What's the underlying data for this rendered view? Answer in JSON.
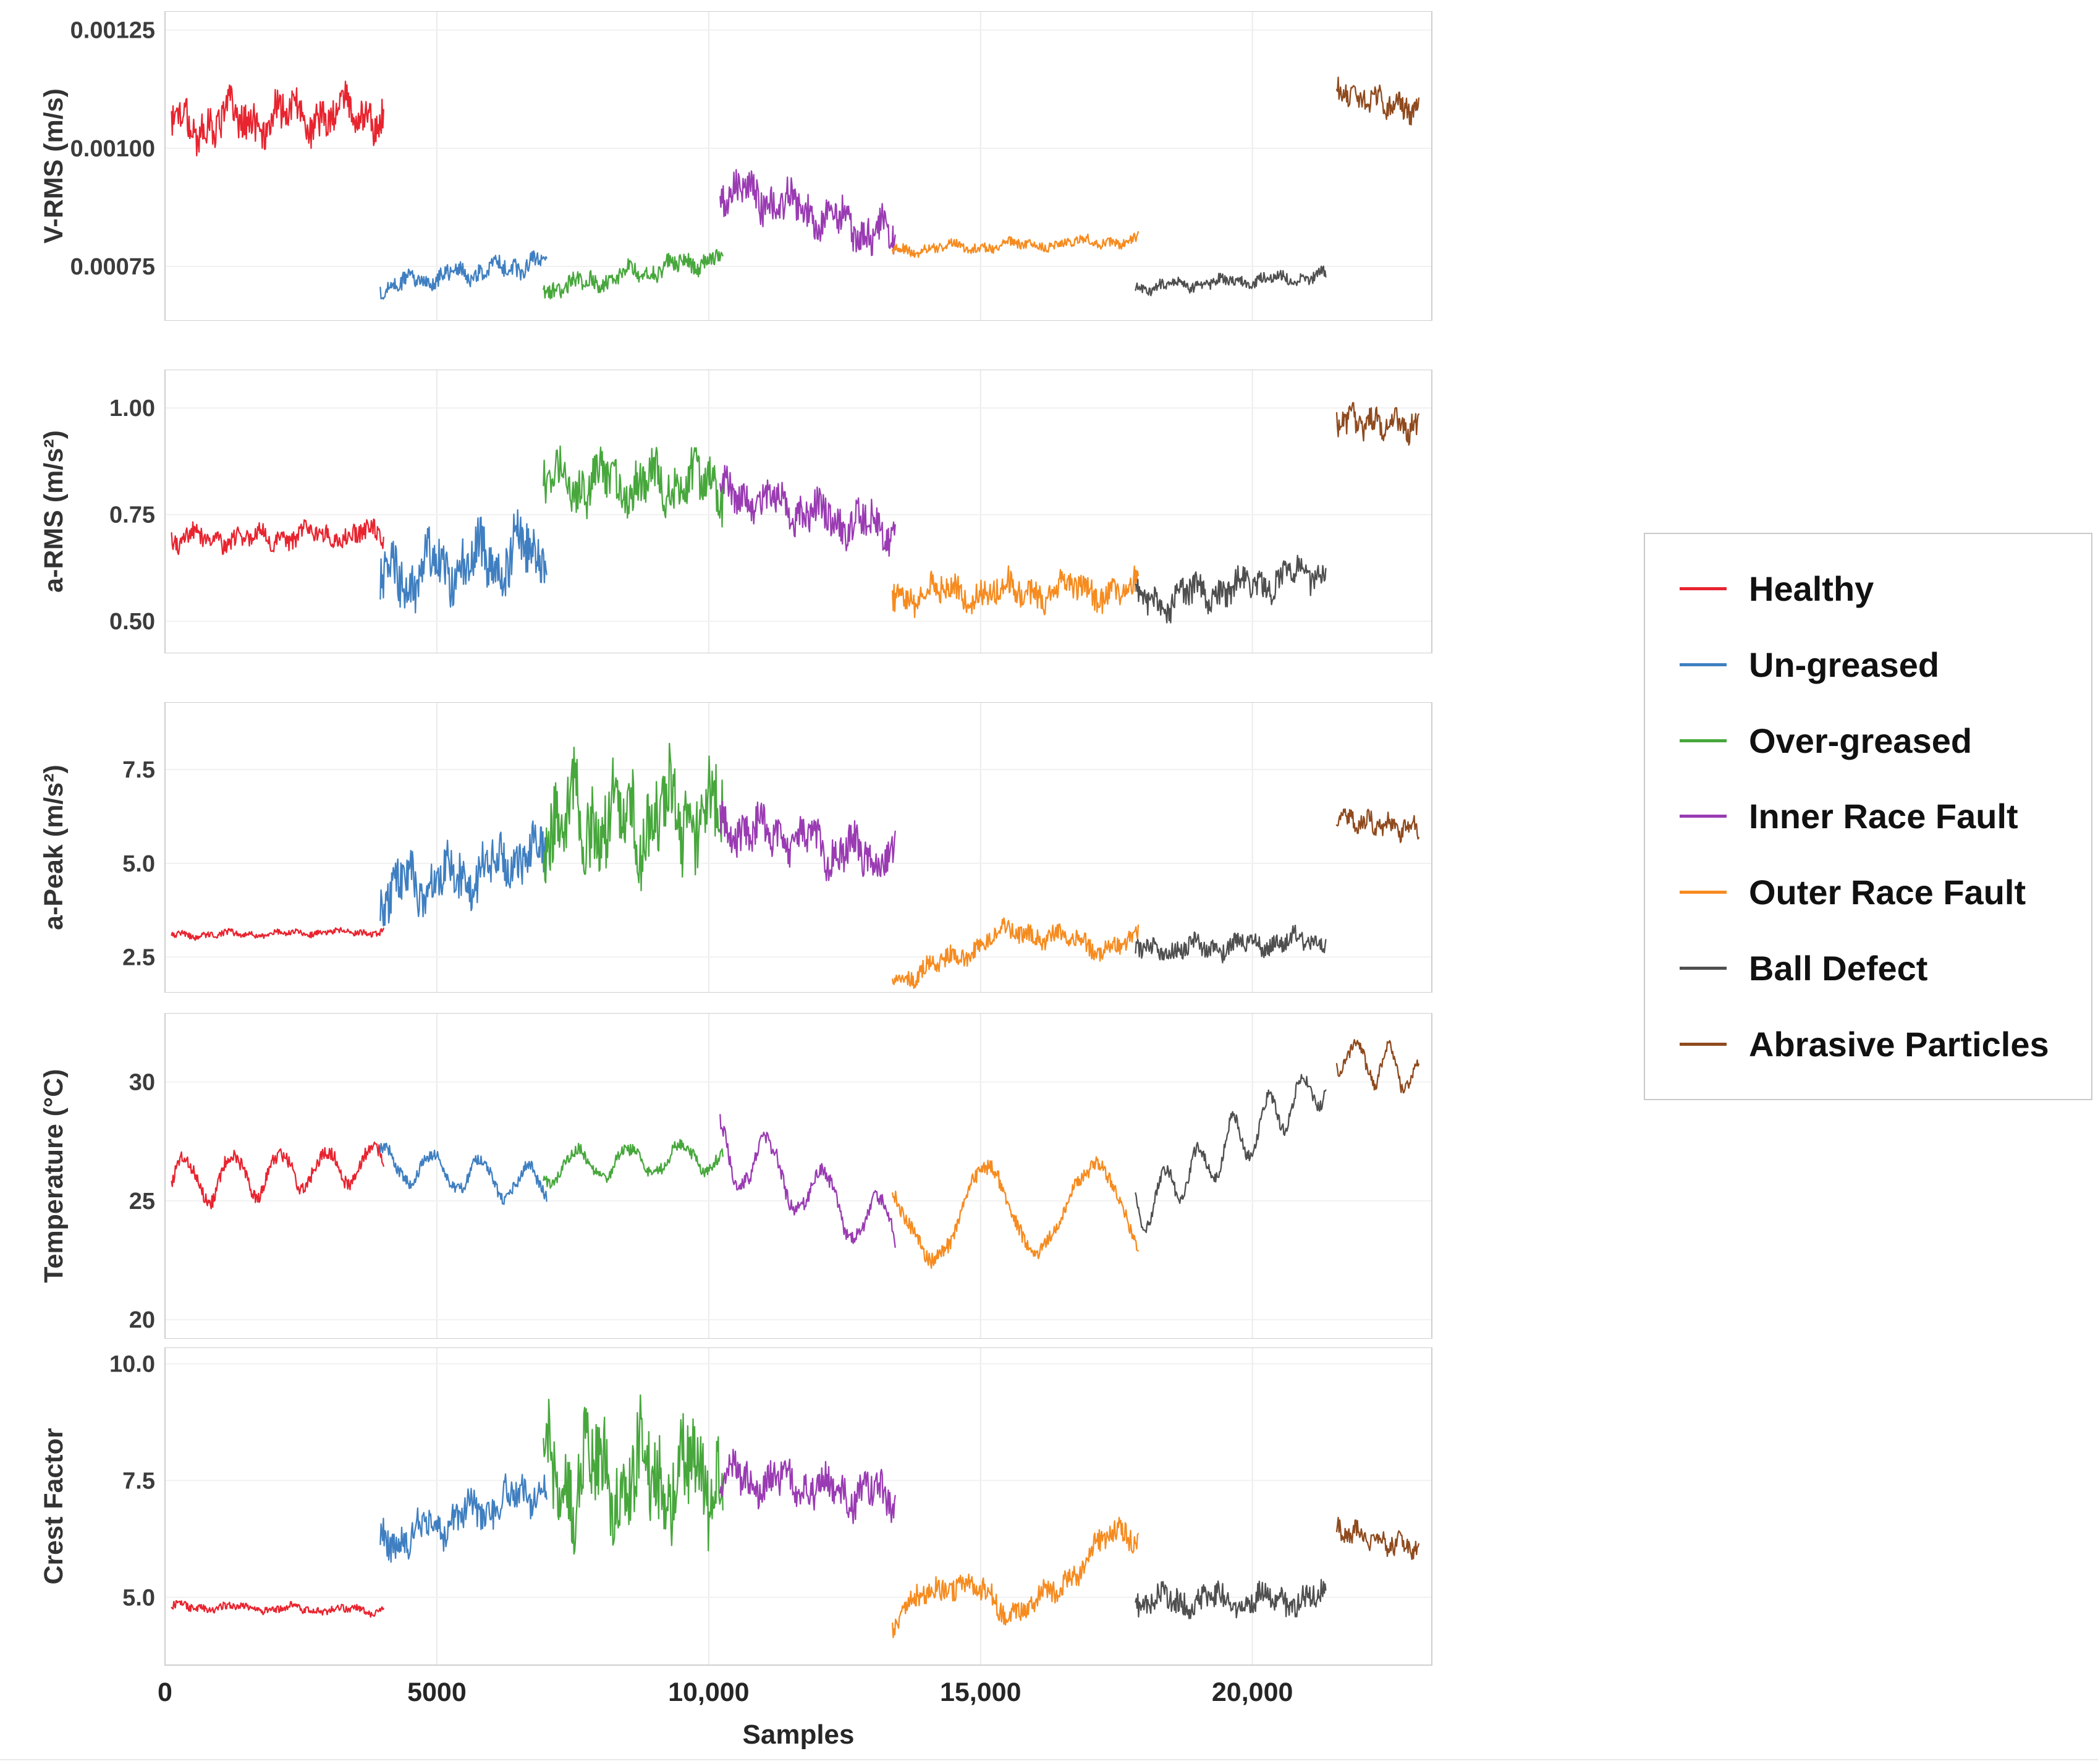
{
  "chart_data": {
    "type": "line",
    "xlabel": "Samples",
    "xlim": [
      0,
      23300
    ],
    "grid": true,
    "legend_position": "right",
    "x_ticks": [
      {
        "v": 0,
        "label": "0"
      },
      {
        "v": 5000,
        "label": "5000"
      },
      {
        "v": 10000,
        "label": "10,000"
      },
      {
        "v": 15000,
        "label": "15,000"
      },
      {
        "v": 20000,
        "label": "20,000"
      }
    ],
    "classes": [
      {
        "name": "Healthy",
        "color": "#e8242f",
        "x": [
          120,
          4020
        ]
      },
      {
        "name": "Un-greased",
        "color": "#3f7fc1",
        "x": [
          3960,
          7020
        ]
      },
      {
        "name": "Over-greased",
        "color": "#47a73c",
        "x": [
          6960,
          10260
        ]
      },
      {
        "name": "Inner Race Fault",
        "color": "#9a3bb3",
        "x": [
          10210,
          13430
        ]
      },
      {
        "name": "Outer Race Fault",
        "color": "#f68b1f",
        "x": [
          13380,
          17900
        ]
      },
      {
        "name": "Ball Defect",
        "color": "#4f4f4f",
        "x": [
          17850,
          21350
        ]
      },
      {
        "name": "Abrasive Particles",
        "color": "#8f4a1e",
        "x": [
          21550,
          23060
        ]
      }
    ],
    "panels": [
      {
        "id": "v-rms",
        "ylabel": "V-RMS (m/s)",
        "ylim": [
          0.000635,
          0.00129
        ],
        "yticks": [
          {
            "v": 0.00075,
            "label": "0.00075"
          },
          {
            "v": 0.001,
            "label": "0.00100"
          },
          {
            "v": 0.00125,
            "label": "0.00125"
          }
        ],
        "segments": [
          {
            "start": 0.00105,
            "end": 0.00108,
            "noise": 5e-05
          },
          {
            "start": 0.00071,
            "end": 0.00076,
            "noise": 2.2e-05
          },
          {
            "start": 0.0007,
            "end": 0.00077,
            "noise": 2.2e-05
          },
          {
            "start": 0.00092,
            "end": 0.00081,
            "noise": 4.5e-05
          },
          {
            "start": 0.000785,
            "end": 0.000805,
            "noise": 1.3e-05
          },
          {
            "start": 0.000705,
            "end": 0.00073,
            "noise": 1.4e-05
          },
          {
            "start": 0.00112,
            "end": 0.00108,
            "noise": 2.8e-05
          }
        ]
      },
      {
        "id": "a-rms",
        "ylabel": "a-RMS (m/s²)",
        "ylim": [
          0.425,
          1.09
        ],
        "yticks": [
          {
            "v": 0.5,
            "label": "0.50"
          },
          {
            "v": 0.75,
            "label": "0.75"
          },
          {
            "v": 1.0,
            "label": "1.00"
          }
        ],
        "segments": [
          {
            "start": 0.69,
            "end": 0.705,
            "noise": 0.028
          },
          {
            "start": 0.6,
            "end": 0.67,
            "noise": 0.075
          },
          {
            "start": 0.82,
            "end": 0.82,
            "noise": 0.065
          },
          {
            "start": 0.8,
            "end": 0.71,
            "noise": 0.05
          },
          {
            "start": 0.565,
            "end": 0.575,
            "noise": 0.04
          },
          {
            "start": 0.54,
            "end": 0.615,
            "noise": 0.04
          },
          {
            "start": 0.975,
            "end": 0.955,
            "noise": 0.033
          }
        ]
      },
      {
        "id": "a-peak",
        "ylabel": "a-Peak (m/s²)",
        "ylim": [
          1.55,
          9.3
        ],
        "yticks": [
          {
            "v": 2.5,
            "label": "2.5"
          },
          {
            "v": 5.0,
            "label": "5.0"
          },
          {
            "v": 7.5,
            "label": "7.5"
          }
        ],
        "segments": [
          {
            "start": 3.08,
            "end": 3.18,
            "noise": 0.1
          },
          {
            "start": 4.2,
            "end": 5.3,
            "noise": 0.75
          },
          {
            "start": 6.2,
            "end": 6.3,
            "noise": 1.35
          },
          {
            "start": 6.0,
            "end": 5.1,
            "noise": 0.65
          },
          {
            "start": 2.35,
            "end": 3.25,
            "noise": 0.3,
            "wave": [
              0.35,
              1.2
            ]
          },
          {
            "start": 2.65,
            "end": 2.95,
            "noise": 0.3
          },
          {
            "start": 6.2,
            "end": 5.9,
            "noise": 0.28
          }
        ]
      },
      {
        "id": "temperature",
        "ylabel": "Temperature (°C)",
        "ylim": [
          19.2,
          32.9
        ],
        "yticks": [
          {
            "v": 20,
            "label": "20"
          },
          {
            "v": 25,
            "label": "25"
          },
          {
            "v": 30,
            "label": "30"
          }
        ],
        "segments": [
          {
            "start": 25.8,
            "end": 26.6,
            "noise": 0.35,
            "wave": [
              0.85,
              4.5
            ]
          },
          {
            "start": 26.6,
            "end": 25.6,
            "noise": 0.3,
            "wave": [
              0.8,
              3.5
            ]
          },
          {
            "start": 26.4,
            "end": 26.9,
            "noise": 0.3,
            "wave": [
              0.7,
              3.5
            ]
          },
          {
            "start": 27.4,
            "end": 23.6,
            "noise": 0.4,
            "wave": [
              1.3,
              3.2
            ]
          },
          {
            "start": 24.2,
            "end": 24.9,
            "noise": 0.4,
            "wave": [
              1.8,
              2.3
            ]
          },
          {
            "start": 24.6,
            "end": 30.1,
            "noise": 0.3,
            "wave": [
              0.95,
              5.5
            ]
          },
          {
            "start": 31.2,
            "end": 30.3,
            "noise": 0.3,
            "wave": [
              0.8,
              2.5
            ]
          }
        ]
      },
      {
        "id": "crest-factor",
        "ylabel": "Crest Factor",
        "ylim": [
          3.55,
          10.35
        ],
        "yticks": [
          {
            "v": 5.0,
            "label": "5.0"
          },
          {
            "v": 7.5,
            "label": "7.5"
          },
          {
            "v": 10.0,
            "label": "10.0"
          }
        ],
        "segments": [
          {
            "start": 4.8,
            "end": 4.72,
            "noise": 0.1
          },
          {
            "start": 6.1,
            "end": 7.4,
            "noise": 0.42
          },
          {
            "start": 7.6,
            "end": 7.7,
            "noise": 1.15
          },
          {
            "start": 7.6,
            "end": 7.15,
            "noise": 0.45
          },
          {
            "start": 4.45,
            "end": 5.95,
            "noise": 0.3,
            "wave": [
              0.5,
              1.4
            ]
          },
          {
            "start": 4.9,
            "end": 4.95,
            "noise": 0.32
          },
          {
            "start": 6.45,
            "end": 6.0,
            "noise": 0.22
          }
        ]
      }
    ]
  }
}
